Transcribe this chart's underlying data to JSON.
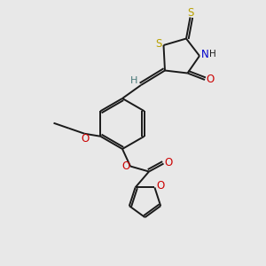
{
  "bg_color": "#e8e8e8",
  "bond_color": "#1a1a1a",
  "S_color": "#b8a000",
  "N_color": "#0000cc",
  "O_color": "#cc0000",
  "H_color": "#4a7a7a",
  "figsize": [
    3.0,
    3.0
  ],
  "dpi": 100,
  "xlim": [
    0,
    10
  ],
  "ylim": [
    0,
    10
  ]
}
